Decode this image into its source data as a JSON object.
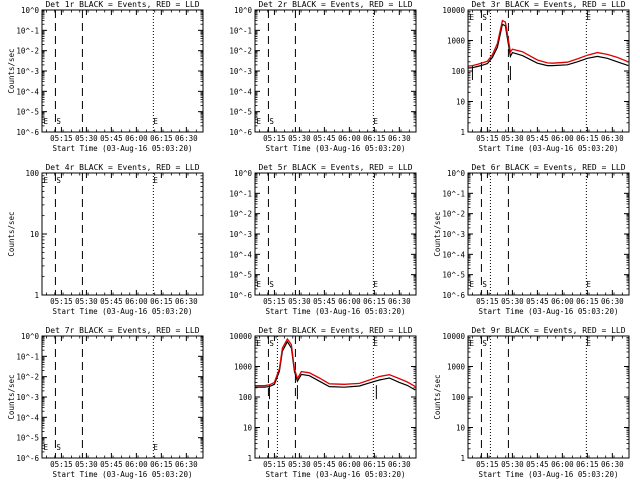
{
  "chart_data": [
    {
      "type": "line",
      "title": "Det 1r BLACK = Events, RED = LLD",
      "ylabel": "Counts/sec",
      "xlabel": "Start Time (03-Aug-16 05:03:20)",
      "x_ticks": [
        "05:15",
        "05:30",
        "05:45",
        "06:00",
        "06:15",
        "06:30"
      ],
      "yscale": "log",
      "y_tick_labels": [
        "10^-6",
        "10^-5",
        "10^-4",
        "10^-3",
        "10^-2",
        "10^-1",
        "10^0"
      ],
      "x_min": 5.0556,
      "x_max": 6.6667,
      "y_min": 1e-06,
      "y_max": 1,
      "annotations": [
        {
          "text": "E",
          "x": 5.06
        },
        {
          "text": "S",
          "x": 5.18
        },
        {
          "text": "E",
          "x": 6.16
        }
      ],
      "solid_marks": [],
      "dashed_lines": [
        5.19,
        5.46
      ],
      "dotted_lines": [
        6.17
      ],
      "series": []
    },
    {
      "type": "line",
      "title": "Det 2r BLACK = Events, RED = LLD",
      "ylabel": "",
      "xlabel": "Start Time (03-Aug-16 05:03:20)",
      "x_ticks": [
        "05:15",
        "05:30",
        "05:45",
        "06:00",
        "06:15",
        "06:30"
      ],
      "yscale": "log",
      "y_tick_labels": [
        "10^-6",
        "10^-5",
        "10^-4",
        "10^-3",
        "10^-2",
        "10^-1",
        "10^0"
      ],
      "x_min": 5.0556,
      "x_max": 6.6667,
      "y_min": 1e-06,
      "y_max": 1,
      "annotations": [
        {
          "text": "E",
          "x": 5.06
        },
        {
          "text": "S",
          "x": 5.18
        },
        {
          "text": "E",
          "x": 6.23
        }
      ],
      "solid_marks": [],
      "dashed_lines": [
        5.19,
        5.46
      ],
      "dotted_lines": [
        6.24
      ],
      "series": []
    },
    {
      "type": "line",
      "title": "Det 3r BLACK = Events, RED = LLD",
      "ylabel": "",
      "xlabel": "Start Time (03-Aug-16 05:03:20)",
      "x_ticks": [
        "05:15",
        "05:30",
        "05:45",
        "06:00",
        "06:15",
        "06:30"
      ],
      "yscale": "log",
      "y_tick_labels": [
        "1",
        "10",
        "100",
        "1000",
        "10000"
      ],
      "x_min": 5.0556,
      "x_max": 6.6667,
      "y_min": 1,
      "y_max": 10000,
      "annotations": [
        {
          "text": "E",
          "x": 5.06
        },
        {
          "text": "S",
          "x": 5.18
        },
        {
          "text": "E",
          "x": 6.23
        }
      ],
      "solid_marks": [
        5.1,
        5.48
      ],
      "dashed_lines": [
        5.19,
        5.46
      ],
      "dotted_lines": [
        5.28,
        6.24
      ],
      "series": [
        {
          "color": "#000000",
          "x": [
            5.06,
            5.1,
            5.15,
            5.2,
            5.25,
            5.3,
            5.35,
            5.4,
            5.43,
            5.48,
            5.5,
            5.6,
            5.75,
            5.85,
            5.9,
            6.05,
            6.15,
            6.25,
            6.35,
            6.45,
            6.55,
            6.66
          ],
          "y": [
            125,
            128,
            140,
            155,
            175,
            280,
            600,
            3400,
            3000,
            300,
            400,
            320,
            180,
            150,
            150,
            160,
            200,
            260,
            300,
            260,
            200,
            150
          ]
        },
        {
          "color": "#e00000",
          "x": [
            5.06,
            5.1,
            5.15,
            5.2,
            5.25,
            5.3,
            5.35,
            5.4,
            5.43,
            5.48,
            5.5,
            5.6,
            5.75,
            5.85,
            5.9,
            6.05,
            6.15,
            6.25,
            6.35,
            6.45,
            6.55,
            6.66
          ],
          "y": [
            145,
            150,
            165,
            185,
            210,
            340,
            800,
            4500,
            4000,
            420,
            520,
            430,
            230,
            185,
            180,
            195,
            250,
            330,
            400,
            350,
            280,
            200
          ]
        }
      ]
    },
    {
      "type": "line",
      "title": "Det 4r BLACK = Events, RED = LLD",
      "ylabel": "Counts/sec",
      "xlabel": "Start Time (03-Aug-16 05:03:20)",
      "x_ticks": [
        "05:15",
        "05:30",
        "05:45",
        "06:00",
        "06:15",
        "06:30"
      ],
      "yscale": "log",
      "y_tick_labels": [
        "1",
        "10",
        "100"
      ],
      "x_min": 5.0556,
      "x_max": 6.6667,
      "y_min": 1,
      "y_max": 100,
      "annotations": [
        {
          "text": "E",
          "x": 5.06
        },
        {
          "text": "S",
          "x": 5.18
        },
        {
          "text": "E",
          "x": 6.16
        }
      ],
      "solid_marks": [],
      "dashed_lines": [
        5.19,
        5.46
      ],
      "dotted_lines": [
        6.17
      ],
      "series": []
    },
    {
      "type": "line",
      "title": "Det 5r BLACK = Events, RED = LLD",
      "ylabel": "",
      "xlabel": "Start Time (03-Aug-16 05:03:20)",
      "x_ticks": [
        "05:15",
        "05:30",
        "05:45",
        "06:00",
        "06:15",
        "06:30"
      ],
      "yscale": "log",
      "y_tick_labels": [
        "10^-6",
        "10^-5",
        "10^-4",
        "10^-3",
        "10^-2",
        "10^-1",
        "10^0"
      ],
      "x_min": 5.0556,
      "x_max": 6.6667,
      "y_min": 1e-06,
      "y_max": 1,
      "annotations": [
        {
          "text": "E",
          "x": 5.06
        },
        {
          "text": "S",
          "x": 5.18
        },
        {
          "text": "E",
          "x": 6.23
        }
      ],
      "solid_marks": [],
      "dashed_lines": [
        5.19,
        5.46
      ],
      "dotted_lines": [
        6.24
      ],
      "series": []
    },
    {
      "type": "line",
      "title": "Det 6r BLACK = Events, RED = LLD",
      "ylabel": "Counts/sec",
      "xlabel": "Start Time (03-Aug-16 05:03:20)",
      "x_ticks": [
        "05:15",
        "05:30",
        "05:45",
        "06:00",
        "06:15",
        "06:30"
      ],
      "yscale": "log",
      "y_tick_labels": [
        "10^-6",
        "10^-5",
        "10^-4",
        "10^-3",
        "10^-2",
        "10^-1",
        "10^0"
      ],
      "x_min": 5.0556,
      "x_max": 6.6667,
      "y_min": 1e-06,
      "y_max": 1,
      "annotations": [
        {
          "text": "E",
          "x": 5.06
        },
        {
          "text": "S",
          "x": 5.18
        },
        {
          "text": "E",
          "x": 6.23
        }
      ],
      "solid_marks": [],
      "dashed_lines": [
        5.19,
        5.46
      ],
      "dotted_lines": [
        5.28,
        6.24
      ],
      "series": []
    },
    {
      "type": "line",
      "title": "Det 7r BLACK = Events, RED = LLD",
      "ylabel": "Counts/sec",
      "xlabel": "Start Time (03-Aug-16 05:03:20)",
      "x_ticks": [
        "05:15",
        "05:30",
        "05:45",
        "06:00",
        "06:15",
        "06:30"
      ],
      "yscale": "log",
      "y_tick_labels": [
        "10^-6",
        "10^-5",
        "10^-4",
        "10^-3",
        "10^-2",
        "10^-1",
        "10^0"
      ],
      "x_min": 5.0556,
      "x_max": 6.6667,
      "y_min": 1e-06,
      "y_max": 1,
      "annotations": [
        {
          "text": "E",
          "x": 5.06
        },
        {
          "text": "S",
          "x": 5.18
        },
        {
          "text": "E",
          "x": 6.16
        }
      ],
      "solid_marks": [],
      "dashed_lines": [
        5.19,
        5.46
      ],
      "dotted_lines": [
        6.17
      ],
      "series": []
    },
    {
      "type": "line",
      "title": "Det 8r BLACK = Events, RED = LLD",
      "ylabel": "",
      "xlabel": "Start Time (03-Aug-16 05:03:20)",
      "x_ticks": [
        "05:15",
        "05:30",
        "05:45",
        "06:00",
        "06:15",
        "06:30"
      ],
      "yscale": "log",
      "y_tick_labels": [
        "1",
        "10",
        "100",
        "1000",
        "10000"
      ],
      "x_min": 5.0556,
      "x_max": 6.6667,
      "y_min": 1,
      "y_max": 10000,
      "annotations": [
        {
          "text": "E",
          "x": 5.06
        },
        {
          "text": "S",
          "x": 5.18
        },
        {
          "text": "E",
          "x": 6.23
        }
      ],
      "solid_marks": [
        5.2,
        5.48,
        6.27
      ],
      "dashed_lines": [
        5.19,
        5.46
      ],
      "dotted_lines": [
        5.28,
        6.24
      ],
      "series": [
        {
          "color": "#000000",
          "x": [
            5.06,
            5.15,
            5.2,
            5.25,
            5.3,
            5.33,
            5.38,
            5.42,
            5.45,
            5.48,
            5.52,
            5.6,
            5.7,
            5.8,
            5.95,
            6.1,
            6.2,
            6.3,
            6.4,
            6.5,
            6.58,
            6.66
          ],
          "y": [
            210,
            210,
            220,
            260,
            700,
            3200,
            6500,
            4000,
            700,
            330,
            550,
            500,
            330,
            220,
            210,
            230,
            290,
            360,
            420,
            300,
            240,
            170
          ]
        },
        {
          "color": "#e00000",
          "x": [
            5.06,
            5.15,
            5.2,
            5.25,
            5.3,
            5.33,
            5.38,
            5.42,
            5.45,
            5.48,
            5.52,
            5.6,
            5.7,
            5.8,
            5.95,
            6.1,
            6.2,
            6.3,
            6.4,
            6.5,
            6.58,
            6.66
          ],
          "y": [
            235,
            235,
            250,
            300,
            850,
            4000,
            8000,
            5200,
            850,
            400,
            680,
            620,
            420,
            270,
            260,
            280,
            360,
            470,
            540,
            400,
            310,
            220
          ]
        }
      ]
    },
    {
      "type": "line",
      "title": "Det 9r BLACK = Events, RED = LLD",
      "ylabel": "Counts/sec",
      "xlabel": "Start Time (03-Aug-16 05:03:20)",
      "x_ticks": [
        "05:15",
        "05:30",
        "05:45",
        "06:00",
        "06:15",
        "06:30"
      ],
      "yscale": "log",
      "y_tick_labels": [
        "1",
        "10",
        "100",
        "1000",
        "10000"
      ],
      "x_min": 5.0556,
      "x_max": 6.6667,
      "y_min": 1,
      "y_max": 10000,
      "annotations": [
        {
          "text": "E",
          "x": 5.06
        },
        {
          "text": "S",
          "x": 5.18
        },
        {
          "text": "E",
          "x": 6.23
        }
      ],
      "solid_marks": [],
      "dashed_lines": [
        5.19,
        5.46
      ],
      "dotted_lines": [
        5.28,
        6.24
      ],
      "series": []
    }
  ]
}
